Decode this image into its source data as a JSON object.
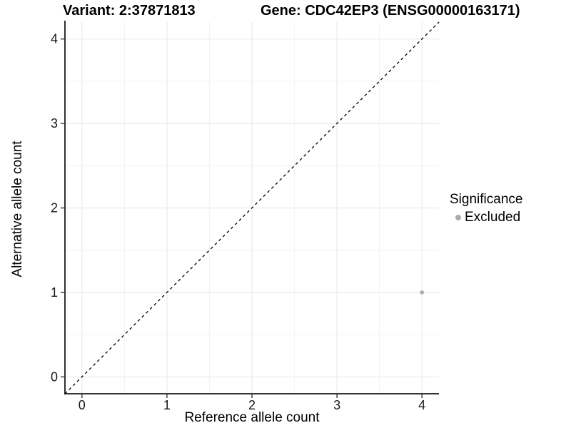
{
  "header": {
    "variant_title": "Variant: 2:37871813",
    "gene_title": "Gene: CDC42EP3 (ENSG00000163171)"
  },
  "chart_data": {
    "type": "scatter",
    "title_left": "Variant: 2:37871813",
    "title_right": "Gene: CDC42EP3 (ENSG00000163171)",
    "xlabel": "Reference allele count",
    "ylabel": "Alternative allele count",
    "xlim": [
      -0.2,
      4.2
    ],
    "ylim": [
      -0.2,
      4.2
    ],
    "x_ticks": [
      0,
      1,
      2,
      3,
      4
    ],
    "y_ticks": [
      0,
      1,
      2,
      3,
      4
    ],
    "minor_ticks": [
      0.5,
      1.5,
      2.5,
      3.5
    ],
    "grid": "major+minor",
    "reference_line": {
      "type": "identity y=x",
      "style": "dashed",
      "color": "#000000",
      "x": [
        -0.2,
        4.2
      ],
      "y": [
        -0.2,
        4.2
      ]
    },
    "series": [
      {
        "name": "Excluded",
        "color": "#ababab",
        "points": [
          {
            "x": 4,
            "y": 1
          }
        ]
      }
    ],
    "legend": {
      "title": "Significance",
      "position": "right",
      "items": [
        {
          "label": "Excluded",
          "color": "#ababab"
        }
      ]
    },
    "style": {
      "background": "#ffffff",
      "grid_major_color": "#e9e9e9",
      "grid_minor_color": "#f3f3f3",
      "axis_line_color": "#1a1a1a",
      "tick_color": "#333333",
      "tick_label_color": "#1a1a1a",
      "point_color": "#ababab"
    }
  }
}
